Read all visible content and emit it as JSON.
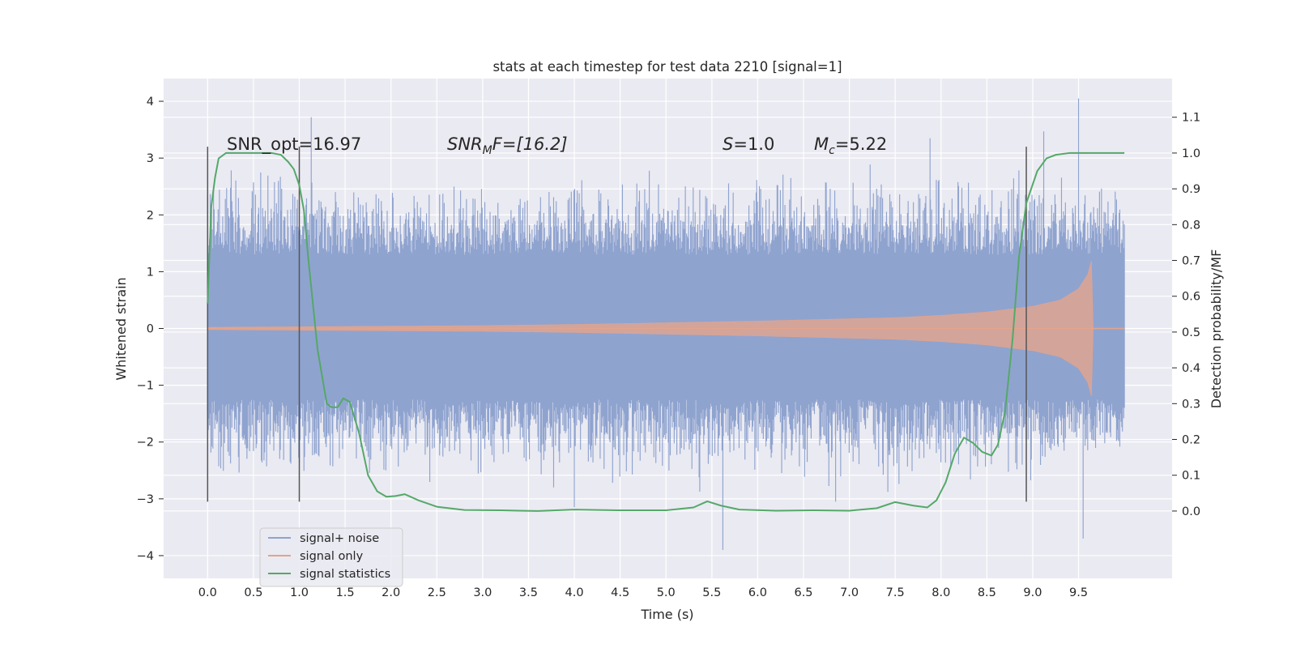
{
  "chart_data": {
    "type": "line",
    "title": "stats at each timestep for test data 2210 [signal=1]",
    "xlabel": "Time (s)",
    "ylabel": "Whitened strain",
    "ylabel_right": "Detection probability/MF",
    "xlim": [
      -0.48,
      10.52
    ],
    "ylim": [
      -4.4,
      4.4
    ],
    "ylim_right": [
      -0.188,
      1.208
    ],
    "x_ticks": [
      "0.0",
      "0.5",
      "1.0",
      "1.5",
      "2.0",
      "2.5",
      "3.0",
      "3.5",
      "4.0",
      "4.5",
      "5.0",
      "5.5",
      "6.0",
      "6.5",
      "7.0",
      "7.5",
      "8.0",
      "8.5",
      "9.0",
      "9.5"
    ],
    "y_ticks": [
      "4",
      "3",
      "2",
      "1",
      "0",
      "−1",
      "−2",
      "−3",
      "−4"
    ],
    "y_ticks_right": [
      "1.1",
      "1.0",
      "0.9",
      "0.8",
      "0.7",
      "0.6",
      "0.5",
      "0.4",
      "0.3",
      "0.2",
      "0.1",
      "0.0"
    ],
    "grid": true,
    "legend_position": "lower-left",
    "annotations": {
      "snr_opt": "SNR_opt=16.97",
      "snr_mf_main": "SNR",
      "snr_mf_sub": "M",
      "snr_mf_rest": "F=[16.2]",
      "s_var": "S",
      "s_val": "=1.0",
      "mc_var": "M",
      "mc_sub": "c",
      "mc_val": "=5.22"
    },
    "vertical_lines": [
      0.0,
      1.0,
      8.93
    ],
    "vertical_line_range": [
      -3.05,
      3.2
    ],
    "series": [
      {
        "name": "signal+ noise",
        "color": "#8fa3cf",
        "kind": "noise",
        "x_range": [
          0.0,
          10.0
        ],
        "envelope": {
          "typical_positive_max": 2.5,
          "typical_negative_min": -2.5,
          "dense_band": [
            -1.25,
            1.3
          ]
        },
        "extremes": [
          [
            1.13,
            3.72
          ],
          [
            9.5,
            4.05
          ],
          [
            9.12,
            3.47
          ],
          [
            7.88,
            3.35
          ],
          [
            5.62,
            -3.9
          ],
          [
            9.55,
            -3.7
          ],
          [
            4.0,
            -3.15
          ],
          [
            6.85,
            -3.05
          ]
        ]
      },
      {
        "name": "signal only",
        "color": "#e3a48c",
        "kind": "chirp",
        "x": [
          0.0,
          2.0,
          3.0,
          4.0,
          5.0,
          6.0,
          7.0,
          7.5,
          8.0,
          8.5,
          9.0,
          9.3,
          9.5,
          9.6,
          9.65,
          9.66,
          10.0
        ],
        "amplitude": [
          0.02,
          0.04,
          0.05,
          0.07,
          0.1,
          0.13,
          0.17,
          0.19,
          0.23,
          0.29,
          0.39,
          0.5,
          0.7,
          0.95,
          1.25,
          0.0,
          0.0
        ]
      },
      {
        "name": "signal statistics",
        "color": "#55a868",
        "axis": "right",
        "x": [
          0.0,
          0.04,
          0.08,
          0.12,
          0.2,
          0.3,
          0.5,
          0.7,
          0.8,
          0.88,
          0.94,
          1.0,
          1.05,
          1.1,
          1.2,
          1.3,
          1.35,
          1.42,
          1.48,
          1.55,
          1.65,
          1.75,
          1.85,
          1.95,
          2.05,
          2.15,
          2.3,
          2.5,
          2.8,
          3.2,
          3.6,
          4.0,
          4.5,
          5.0,
          5.3,
          5.45,
          5.6,
          5.8,
          6.2,
          6.6,
          7.0,
          7.3,
          7.5,
          7.7,
          7.85,
          7.95,
          8.05,
          8.15,
          8.25,
          8.35,
          8.45,
          8.55,
          8.62,
          8.7,
          8.78,
          8.85,
          8.93,
          9.05,
          9.15,
          9.25,
          9.4,
          9.6,
          10.0
        ],
        "y": [
          0.58,
          0.85,
          0.93,
          0.985,
          1.0,
          1.0,
          1.0,
          1.0,
          0.995,
          0.975,
          0.955,
          0.91,
          0.84,
          0.7,
          0.45,
          0.3,
          0.29,
          0.29,
          0.315,
          0.305,
          0.22,
          0.1,
          0.055,
          0.04,
          0.042,
          0.047,
          0.03,
          0.012,
          0.003,
          0.002,
          0.0,
          0.004,
          0.002,
          0.002,
          0.01,
          0.027,
          0.015,
          0.004,
          0.001,
          0.002,
          0.001,
          0.008,
          0.025,
          0.015,
          0.01,
          0.03,
          0.08,
          0.16,
          0.205,
          0.19,
          0.165,
          0.155,
          0.185,
          0.28,
          0.48,
          0.71,
          0.86,
          0.95,
          0.985,
          0.995,
          1.0,
          1.0,
          1.0
        ]
      }
    ]
  }
}
